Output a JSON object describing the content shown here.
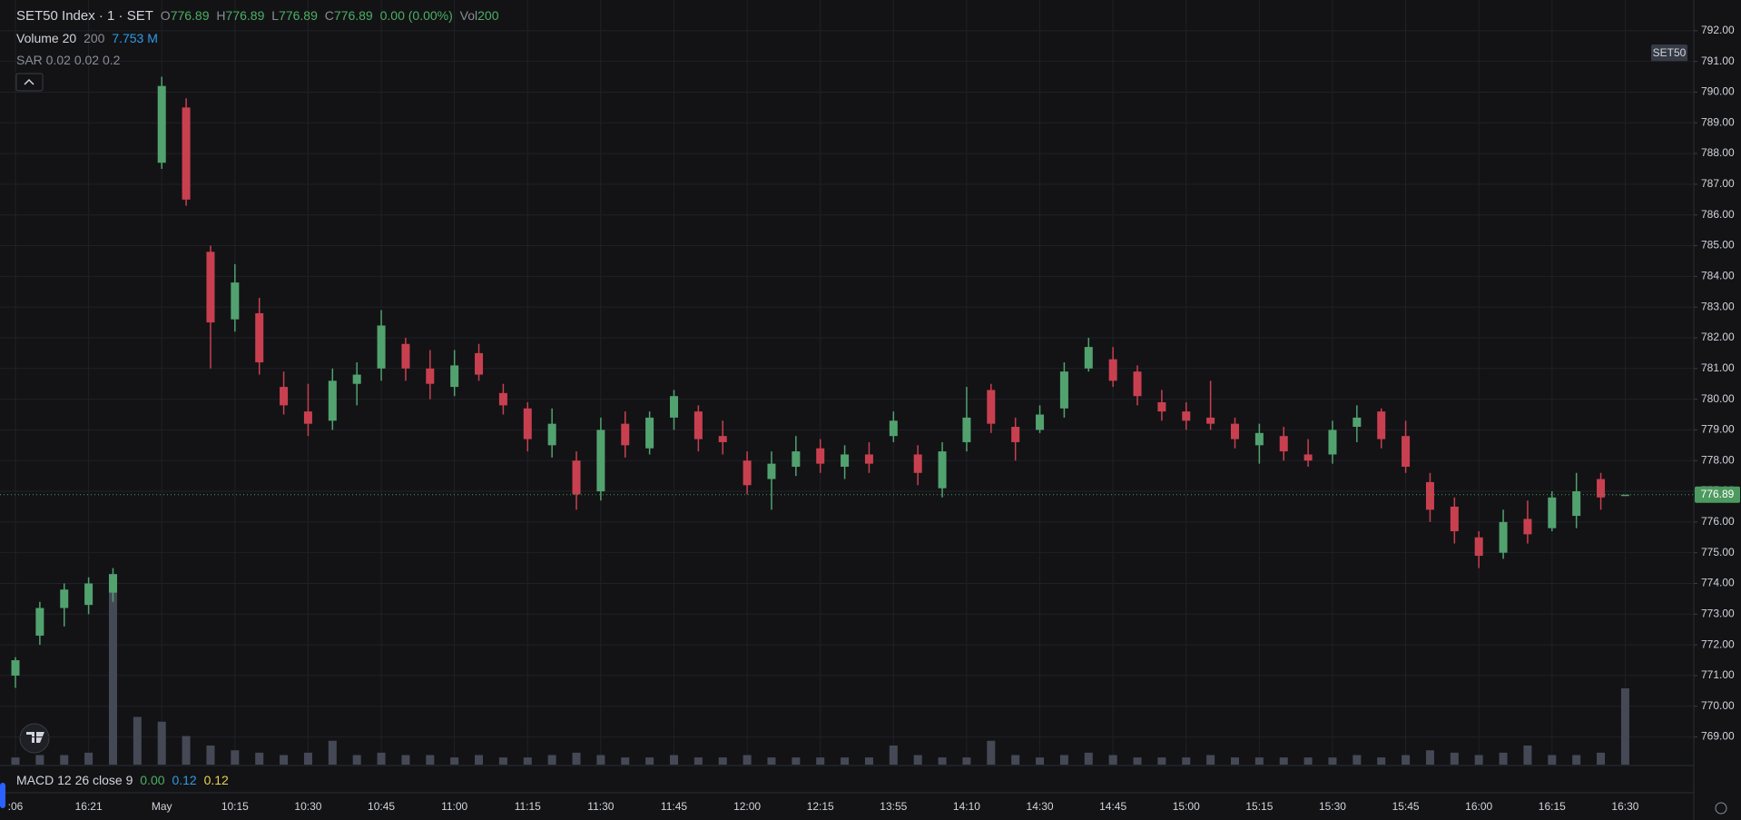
{
  "header": {
    "symbol": "SET50 Index · 1 · SET",
    "o_label": "O",
    "o": "776.89",
    "h_label": "H",
    "h": "776.89",
    "l_label": "L",
    "l": "776.89",
    "c_label": "C",
    "c": "776.89",
    "change": "0.00 (0.00%)",
    "vol_label": "Vol",
    "vol": "200"
  },
  "volume_legend": {
    "name": "Volume 20",
    "a": "200",
    "b": "7.753 M"
  },
  "sar": "SAR 0.02 0.02 0.2",
  "macd": {
    "name": "MACD 12 26 close 9",
    "v1": "0.00",
    "v2": "0.12",
    "v3": "0.12"
  },
  "symbol_badge": "SET50",
  "chart_data": {
    "type": "candlestick",
    "categories": [
      ":06",
      null,
      null,
      "16:21",
      null,
      null,
      "May",
      null,
      null,
      "10:15",
      null,
      null,
      "10:30",
      null,
      null,
      "10:45",
      null,
      null,
      "11:00",
      null,
      null,
      "11:15",
      null,
      null,
      "11:30",
      null,
      null,
      "11:45",
      null,
      null,
      "12:00",
      null,
      null,
      "12:15",
      null,
      null,
      "13:55",
      null,
      null,
      "14:10",
      null,
      null,
      "14:30",
      null,
      null,
      "14:45",
      null,
      null,
      "15:00",
      null,
      null,
      "15:15",
      null,
      null,
      "15:30",
      null,
      null,
      "15:45",
      null,
      null,
      "16:00",
      null,
      null,
      "16:15",
      null,
      null,
      "16:30"
    ],
    "open": [
      771.0,
      772.3,
      773.2,
      773.3,
      773.7,
      null,
      787.7,
      789.5,
      784.8,
      782.6,
      782.8,
      780.4,
      779.6,
      779.3,
      780.5,
      781.0,
      781.8,
      781.0,
      780.4,
      781.5,
      780.2,
      779.7,
      778.5,
      778.0,
      777.0,
      779.2,
      778.4,
      779.4,
      779.6,
      778.8,
      778.0,
      777.4,
      777.8,
      778.4,
      777.8,
      778.2,
      778.8,
      778.2,
      777.1,
      778.6,
      780.3,
      779.1,
      779.0,
      779.7,
      781.0,
      781.3,
      780.9,
      779.9,
      779.6,
      779.4,
      779.2,
      778.5,
      778.8,
      778.2,
      778.2,
      779.1,
      779.6,
      778.8,
      777.3,
      776.5,
      775.5,
      775.0,
      776.1,
      775.8,
      776.2,
      777.4,
      776.89
    ],
    "high": [
      771.6,
      773.4,
      774.0,
      774.2,
      774.5,
      null,
      790.5,
      789.8,
      785.0,
      784.4,
      783.3,
      780.9,
      780.5,
      781.0,
      781.2,
      782.9,
      782.0,
      781.6,
      781.6,
      781.8,
      780.5,
      779.9,
      779.7,
      778.3,
      779.4,
      779.6,
      779.6,
      780.3,
      779.8,
      779.3,
      778.3,
      778.3,
      778.8,
      778.7,
      778.5,
      778.6,
      779.6,
      778.5,
      778.6,
      780.4,
      780.5,
      779.4,
      779.8,
      781.2,
      782.0,
      781.7,
      781.1,
      780.3,
      779.9,
      780.6,
      779.4,
      779.2,
      779.1,
      778.7,
      779.3,
      779.8,
      779.7,
      779.3,
      777.6,
      776.8,
      775.7,
      776.4,
      776.7,
      777.0,
      777.6,
      777.6,
      776.89
    ],
    "low": [
      770.6,
      772.0,
      772.6,
      773.0,
      773.4,
      null,
      787.5,
      786.3,
      781.0,
      782.2,
      780.8,
      779.5,
      778.8,
      779.0,
      779.8,
      780.6,
      780.6,
      780.0,
      780.1,
      780.6,
      779.5,
      778.3,
      778.1,
      776.4,
      776.7,
      778.1,
      778.2,
      779.0,
      778.3,
      778.2,
      776.9,
      776.4,
      777.5,
      777.6,
      777.4,
      777.6,
      778.6,
      777.2,
      776.8,
      778.3,
      778.9,
      778.0,
      778.9,
      779.4,
      780.9,
      780.4,
      779.8,
      779.3,
      779.0,
      779.0,
      778.4,
      777.9,
      778.0,
      777.8,
      777.9,
      778.6,
      778.4,
      777.6,
      776.0,
      775.3,
      774.5,
      774.8,
      775.3,
      775.7,
      775.8,
      776.4,
      776.89
    ],
    "close": [
      771.5,
      773.2,
      773.8,
      774.0,
      774.3,
      null,
      790.2,
      786.5,
      782.5,
      783.8,
      781.2,
      779.8,
      779.2,
      780.6,
      780.8,
      782.4,
      781.0,
      780.5,
      781.1,
      780.8,
      779.8,
      778.7,
      779.2,
      776.9,
      779.0,
      778.5,
      779.4,
      780.1,
      778.7,
      778.6,
      777.2,
      777.9,
      778.3,
      777.9,
      778.2,
      777.9,
      779.3,
      777.6,
      778.3,
      779.4,
      779.2,
      778.6,
      779.5,
      780.9,
      781.7,
      780.6,
      780.1,
      779.6,
      779.3,
      779.2,
      778.7,
      778.9,
      778.3,
      778.0,
      779.0,
      779.4,
      778.7,
      777.8,
      776.4,
      775.7,
      774.9,
      776.0,
      775.6,
      776.8,
      777.0,
      776.8,
      776.89
    ],
    "volume": [
      3,
      4,
      4,
      5,
      80,
      20,
      18,
      12,
      8,
      6,
      5,
      4,
      5,
      10,
      4,
      5,
      4,
      4,
      3,
      4,
      3,
      3,
      4,
      5,
      4,
      3,
      3,
      4,
      3,
      3,
      4,
      3,
      3,
      3,
      3,
      3,
      8,
      4,
      3,
      3,
      10,
      4,
      3,
      4,
      5,
      4,
      3,
      3,
      3,
      4,
      3,
      3,
      3,
      3,
      3,
      4,
      3,
      4,
      6,
      5,
      4,
      5,
      8,
      4,
      4,
      5,
      32
    ],
    "ylim": [
      768.1,
      793.0
    ],
    "yticks": [
      {
        "value": 769,
        "label": "769.00"
      },
      {
        "value": 770,
        "label": "770.00"
      },
      {
        "value": 771,
        "label": "771.00"
      },
      {
        "value": 772,
        "label": "772.00"
      },
      {
        "value": 773,
        "label": "773.00"
      },
      {
        "value": 774,
        "label": "774.00"
      },
      {
        "value": 775,
        "label": "775.00"
      },
      {
        "value": 776,
        "label": "776.00"
      },
      {
        "value": 777,
        "label": "777.00"
      },
      {
        "value": 778,
        "label": "778.00"
      },
      {
        "value": 779,
        "label": "779.00"
      },
      {
        "value": 780,
        "label": "780.00"
      },
      {
        "value": 781,
        "label": "781.00"
      },
      {
        "value": 782,
        "label": "782.00"
      },
      {
        "value": 783,
        "label": "783.00"
      },
      {
        "value": 784,
        "label": "784.00"
      },
      {
        "value": 785,
        "label": "785.00"
      },
      {
        "value": 786,
        "label": "786.00"
      },
      {
        "value": 787,
        "label": "787.00"
      },
      {
        "value": 788,
        "label": "788.00"
      },
      {
        "value": 789,
        "label": "789.00"
      },
      {
        "value": 790,
        "label": "790.00"
      },
      {
        "value": 791,
        "label": "791.00"
      },
      {
        "value": 792,
        "label": "792.00"
      }
    ],
    "last_price": 776.89,
    "up_color": "#52a26f",
    "down_color": "#c8404f",
    "volume_color": "#454955",
    "last_color": "#4c9a5f",
    "grid": true
  }
}
